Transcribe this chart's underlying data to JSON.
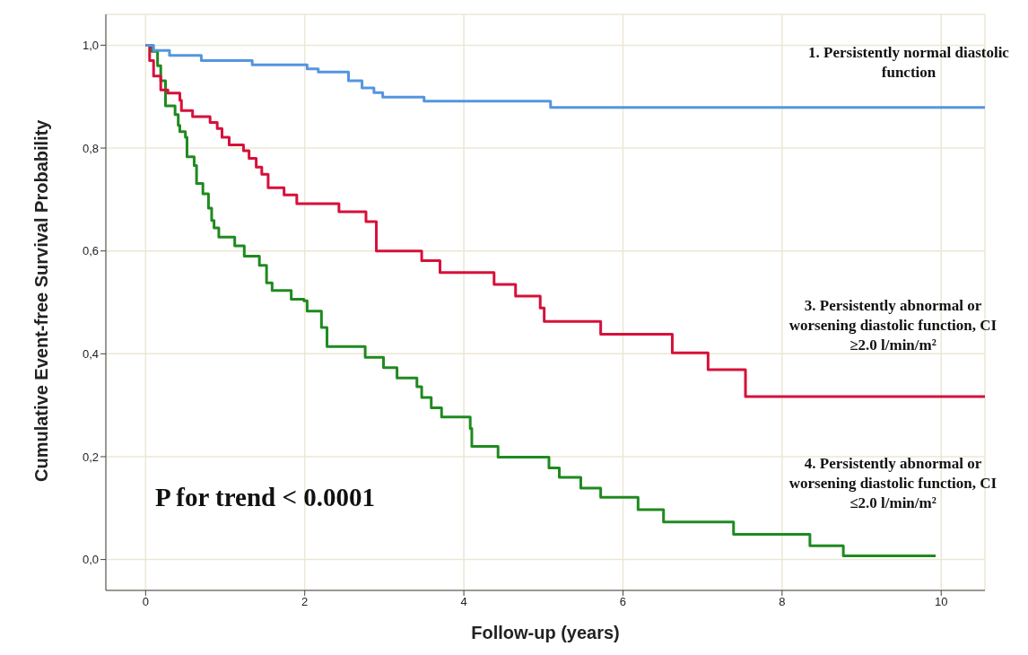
{
  "chart_data": {
    "type": "step",
    "xlabel": "Follow-up (years)",
    "ylabel": "Cumulative Event-free Survival Probability",
    "xlim": [
      -0.5,
      10.55
    ],
    "xticks": [
      0,
      2,
      4,
      6,
      8,
      10
    ],
    "ylim": [
      -0.06,
      1.06
    ],
    "yticks": [
      {
        "value": 0,
        "label": "0,0"
      },
      {
        "value": 0.2,
        "label": "0,2"
      },
      {
        "value": 0.4,
        "label": "0,4"
      },
      {
        "value": 0.6,
        "label": "0,6"
      },
      {
        "value": 0.8,
        "label": "0,8"
      },
      {
        "value": 1,
        "label": "1,0"
      }
    ],
    "grid": true,
    "legend": false,
    "line_style": "solid",
    "marker": "none",
    "annotations": [
      "P for trend < 0.0001"
    ],
    "series": [
      {
        "name": "1. Persistently normal diastolic function",
        "color": "#5595e0",
        "x": [
          0,
          0.1,
          0.3,
          0.7,
          1.34,
          2.03,
          2.17,
          2.55,
          2.72,
          2.87,
          2.98,
          3.5,
          5.09,
          10.55
        ],
        "values": [
          1,
          0.99,
          0.98,
          0.97,
          0.962,
          0.954,
          0.948,
          0.931,
          0.917,
          0.908,
          0.899,
          0.891,
          0.879,
          0.879
        ]
      },
      {
        "name": "3. Persistently abnormal or worsening diastolic function, CI ≥2.0 l/min/m²",
        "color": "#d6103a",
        "x": [
          0,
          0.05,
          0.1,
          0.19,
          0.28,
          0.43,
          0.45,
          0.59,
          0.81,
          0.9,
          0.96,
          1.05,
          1.23,
          1.3,
          1.39,
          1.46,
          1.54,
          1.74,
          1.9,
          2.43,
          2.77,
          2.9,
          3.47,
          3.7,
          4.38,
          4.65,
          4.96,
          5.01,
          5.72,
          6.62,
          7.07,
          7.54,
          10.55
        ],
        "values": [
          1,
          0.97,
          0.94,
          0.913,
          0.907,
          0.893,
          0.873,
          0.861,
          0.85,
          0.838,
          0.821,
          0.806,
          0.795,
          0.78,
          0.763,
          0.749,
          0.723,
          0.709,
          0.692,
          0.676,
          0.657,
          0.6,
          0.581,
          0.558,
          0.535,
          0.512,
          0.489,
          0.463,
          0.438,
          0.402,
          0.369,
          0.317,
          0.317
        ]
      },
      {
        "name": "4. Persistently abnormal or worsening diastolic function, CI ≤2.0 l/min/m²",
        "color": "#1f8a1f",
        "x": [
          0,
          0.07,
          0.15,
          0.19,
          0.25,
          0.37,
          0.41,
          0.43,
          0.5,
          0.52,
          0.61,
          0.64,
          0.72,
          0.79,
          0.83,
          0.86,
          0.92,
          1.12,
          1.24,
          1.43,
          1.52,
          1.59,
          1.83,
          1.99,
          2.03,
          2.21,
          2.28,
          2.76,
          2.99,
          3.16,
          3.41,
          3.47,
          3.59,
          3.72,
          4.08,
          4.1,
          4.43,
          5.07,
          5.2,
          5.47,
          5.72,
          6.19,
          6.51,
          7.39,
          8.35,
          8.77,
          9.93
        ],
        "values": [
          1,
          0.988,
          0.96,
          0.931,
          0.882,
          0.865,
          0.844,
          0.832,
          0.821,
          0.783,
          0.766,
          0.731,
          0.711,
          0.683,
          0.659,
          0.645,
          0.627,
          0.61,
          0.59,
          0.572,
          0.538,
          0.523,
          0.506,
          0.503,
          0.483,
          0.451,
          0.414,
          0.393,
          0.373,
          0.353,
          0.336,
          0.315,
          0.295,
          0.277,
          0.255,
          0.22,
          0.199,
          0.178,
          0.16,
          0.139,
          0.121,
          0.097,
          0.073,
          0.049,
          0.027,
          0.007,
          0.007
        ]
      }
    ]
  }
}
